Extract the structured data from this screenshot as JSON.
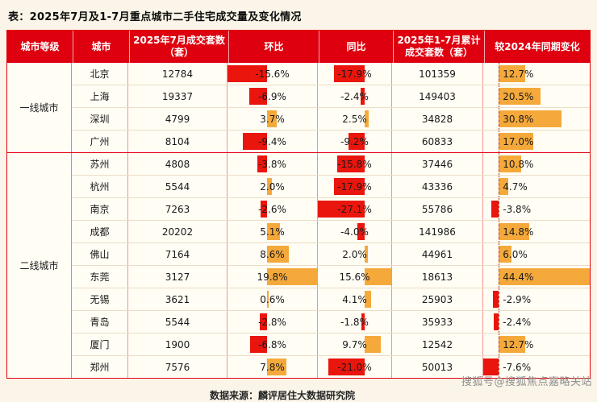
{
  "title": "表：2025年7月及1-7月重点城市二手住宅成交量及变化情况",
  "footer": {
    "source": "数据来源：麟评居住大数据研究院"
  },
  "watermark": "搜狐号@搜狐焦点嘉略关站",
  "colors": {
    "header_bg": "#de000f",
    "negative_bar": "#ea150d",
    "positive_bar": "#f5a93b",
    "page_bg": "#faf5e8",
    "border_red": "#e2000f"
  },
  "chart_data": {
    "type": "table",
    "title": "表：2025年7月及1-7月重点城市二手住宅成交量及变化情况",
    "columns": [
      "城市等级",
      "城市",
      "2025年7月成交套数（套）",
      "环比",
      "同比",
      "2025年1-7月累计成交套数（套）",
      "较2024年同期变化"
    ],
    "groups": [
      {
        "tier": "一线城市",
        "rows": [
          {
            "city": "北京",
            "jul_2025_units": 12784,
            "mom_pct": -15.6,
            "yoy_pct": -17.9,
            "cum_jan_jul_units": 101359,
            "vs_2024_pct": 12.7
          },
          {
            "city": "上海",
            "jul_2025_units": 19337,
            "mom_pct": -6.9,
            "yoy_pct": -2.4,
            "cum_jan_jul_units": 149403,
            "vs_2024_pct": 20.5
          },
          {
            "city": "深圳",
            "jul_2025_units": 4799,
            "mom_pct": 3.7,
            "yoy_pct": 2.5,
            "cum_jan_jul_units": 34828,
            "vs_2024_pct": 30.8
          },
          {
            "city": "广州",
            "jul_2025_units": 8104,
            "mom_pct": -9.4,
            "yoy_pct": -9.2,
            "cum_jan_jul_units": 60833,
            "vs_2024_pct": 17.0
          }
        ]
      },
      {
        "tier": "二线城市",
        "rows": [
          {
            "city": "苏州",
            "jul_2025_units": 4808,
            "mom_pct": -3.8,
            "yoy_pct": -15.8,
            "cum_jan_jul_units": 37446,
            "vs_2024_pct": 10.8
          },
          {
            "city": "杭州",
            "jul_2025_units": 5544,
            "mom_pct": 2.0,
            "yoy_pct": -17.9,
            "cum_jan_jul_units": 43336,
            "vs_2024_pct": 4.7
          },
          {
            "city": "南京",
            "jul_2025_units": 7263,
            "mom_pct": -2.6,
            "yoy_pct": -27.1,
            "cum_jan_jul_units": 55786,
            "vs_2024_pct": -3.8
          },
          {
            "city": "成都",
            "jul_2025_units": 20202,
            "mom_pct": 5.1,
            "yoy_pct": -4.0,
            "cum_jan_jul_units": 141986,
            "vs_2024_pct": 14.8
          },
          {
            "city": "佛山",
            "jul_2025_units": 7164,
            "mom_pct": 8.6,
            "yoy_pct": 2.0,
            "cum_jan_jul_units": 44961,
            "vs_2024_pct": 6.0
          },
          {
            "city": "东莞",
            "jul_2025_units": 3127,
            "mom_pct": 19.8,
            "yoy_pct": 15.6,
            "cum_jan_jul_units": 18613,
            "vs_2024_pct": 44.4
          },
          {
            "city": "无锡",
            "jul_2025_units": 3621,
            "mom_pct": 0.6,
            "yoy_pct": 4.1,
            "cum_jan_jul_units": 25903,
            "vs_2024_pct": -2.9
          },
          {
            "city": "青岛",
            "jul_2025_units": 5544,
            "mom_pct": -2.8,
            "yoy_pct": -1.8,
            "cum_jan_jul_units": 35933,
            "vs_2024_pct": -2.4
          },
          {
            "city": "厦门",
            "jul_2025_units": 1900,
            "mom_pct": -6.8,
            "yoy_pct": 9.7,
            "cum_jan_jul_units": 12542,
            "vs_2024_pct": 12.7
          },
          {
            "city": "郑州",
            "jul_2025_units": 7576,
            "mom_pct": 7.8,
            "yoy_pct": -21.0,
            "cum_jan_jul_units": 50013,
            "vs_2024_pct": -7.6
          }
        ]
      }
    ],
    "bar_axes": {
      "mom_pct": {
        "min": -15.6,
        "max": 19.8
      },
      "yoy_pct": {
        "min": -27.1,
        "max": 15.6
      },
      "vs_2024_pct": {
        "min": -7.6,
        "max": 44.4
      }
    },
    "legend": "red bar = negative, orange bar = positive; dashed line = zero axis of last column"
  }
}
